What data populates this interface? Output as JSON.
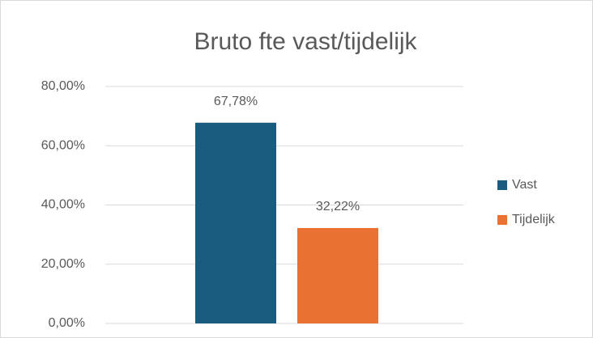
{
  "chart_data": {
    "type": "bar",
    "title": "Bruto fte vast/tijdelijk",
    "categories": [
      null
    ],
    "series": [
      {
        "name": "Vast",
        "color": "#1a5b80",
        "values": [
          67.78
        ],
        "value_labels": [
          "67,78%"
        ]
      },
      {
        "name": "Tijdelijk",
        "color": "#e97132",
        "values": [
          32.22
        ],
        "value_labels": [
          "32,22%"
        ]
      }
    ],
    "ylim": [
      0,
      80
    ],
    "yticks": [
      {
        "value": 0,
        "label": "0,00%"
      },
      {
        "value": 20,
        "label": "20,00%"
      },
      {
        "value": 40,
        "label": "40,00%"
      },
      {
        "value": 60,
        "label": "60,00%"
      },
      {
        "value": 80,
        "label": "80,00%"
      }
    ],
    "grid": true,
    "legend": "right"
  }
}
